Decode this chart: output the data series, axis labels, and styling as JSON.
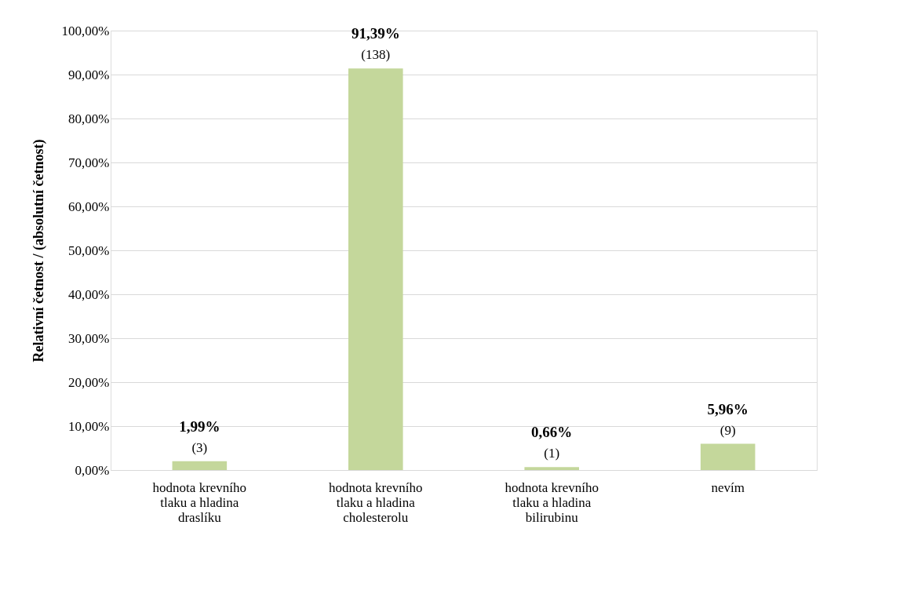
{
  "chart_data": {
    "type": "bar",
    "ylabel": "Relativní četnost / (absolutní četnost)",
    "categories": [
      "hodnota krevního tlaku a hladina draslíku",
      "hodnota krevního tlaku a hladina cholesterolu",
      "hodnota krevního tlaku a hladina bilirubinu",
      "nevím"
    ],
    "values": [
      1.99,
      91.39,
      0.66,
      5.96
    ],
    "color": "#c4d79b",
    "value_labels": [
      "1,99%",
      "91,39%",
      "0,66%",
      "5,96%"
    ],
    "annotations": [
      {
        "text": "(3)",
        "x": "hodnota krevního tlaku a hladina draslíku",
        "y": 1.99
      },
      {
        "text": "(138)",
        "x": "hodnota krevního tlaku a hladina cholesterolu",
        "y": 91.39
      },
      {
        "text": "(1)",
        "x": "hodnota krevního tlaku a hladina bilirubinu",
        "y": 0.66
      },
      {
        "text": "(9)",
        "x": "nevím",
        "y": 5.96
      }
    ],
    "ylim": [
      0,
      100
    ],
    "yticks": [
      {
        "value": 0,
        "label": "0,00%"
      },
      {
        "value": 10,
        "label": "10,00%"
      },
      {
        "value": 20,
        "label": "20,00%"
      },
      {
        "value": 30,
        "label": "30,00%"
      },
      {
        "value": 40,
        "label": "40,00%"
      },
      {
        "value": 50,
        "label": "50,00%"
      },
      {
        "value": 60,
        "label": "60,00%"
      },
      {
        "value": 70,
        "label": "70,00%"
      },
      {
        "value": 80,
        "label": "80,00%"
      },
      {
        "value": 90,
        "label": "90,00%"
      },
      {
        "value": 100,
        "label": "100,00%"
      }
    ],
    "grid": "y"
  }
}
